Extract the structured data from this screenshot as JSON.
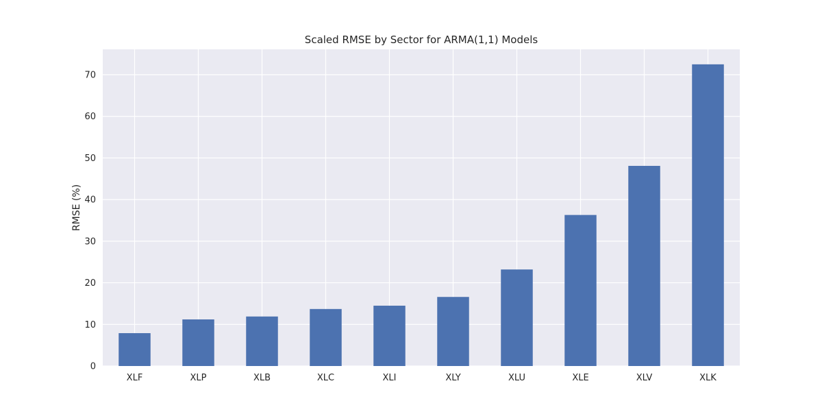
{
  "chart_data": {
    "type": "bar",
    "title": "Scaled RMSE by Sector for ARMA(1,1) Models",
    "xlabel": "",
    "ylabel": "RMSE (%)",
    "categories": [
      "XLF",
      "XLP",
      "XLB",
      "XLC",
      "XLI",
      "XLY",
      "XLU",
      "XLE",
      "XLV",
      "XLK"
    ],
    "values": [
      7.9,
      11.2,
      11.9,
      13.7,
      14.5,
      16.6,
      23.2,
      36.3,
      48.1,
      72.5
    ],
    "ylim": [
      0,
      76.1
    ],
    "yticks": [
      0,
      10,
      20,
      30,
      40,
      50,
      60,
      70
    ],
    "grid": true,
    "colors": {
      "bar": "#4c72b0",
      "plot_background": "#eaeaf2",
      "grid": "#ffffff"
    }
  }
}
